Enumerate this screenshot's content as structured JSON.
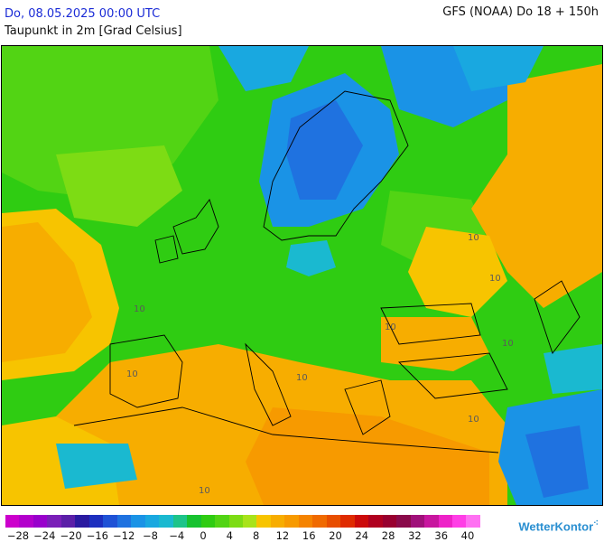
{
  "header": {
    "date": "Do, 08.05.2025 00:00 UTC",
    "parameter": "Taupunkt in 2m [Grad Celsius]",
    "model_run": "GFS (NOAA) Do 18 + 150h"
  },
  "map": {
    "region": "Europe",
    "contour_labels": [
      "10",
      "10",
      "10",
      "10",
      "10",
      "10",
      "10",
      "10",
      "10"
    ]
  },
  "legend": {
    "colors": [
      "#cc00cc",
      "#b300cc",
      "#9900cc",
      "#7a1fb8",
      "#5b1fa8",
      "#2a1aa0",
      "#1d2fbf",
      "#1f52d6",
      "#1f72e0",
      "#1a93e6",
      "#19a8e0",
      "#1ab9d0",
      "#1dc48a",
      "#17c230",
      "#2fcc12",
      "#52d414",
      "#7ddc14",
      "#a8e31a",
      "#f7c400",
      "#f7ad00",
      "#f79a00",
      "#f58300",
      "#f06a00",
      "#e84e00",
      "#df2b00",
      "#cc0a0a",
      "#b0001f",
      "#98002f",
      "#8a0a4a",
      "#a0107a",
      "#c8169f",
      "#ee22c8",
      "#ff3ee6",
      "#ff70f2"
    ],
    "tick_labels": [
      "−28",
      "−24",
      "−20",
      "−16",
      "−12",
      "−8",
      "−4",
      "0",
      "4",
      "8",
      "12",
      "16",
      "20",
      "24",
      "28",
      "32",
      "36",
      "40"
    ]
  },
  "branding": {
    "logo_text": "WetterKontor"
  }
}
